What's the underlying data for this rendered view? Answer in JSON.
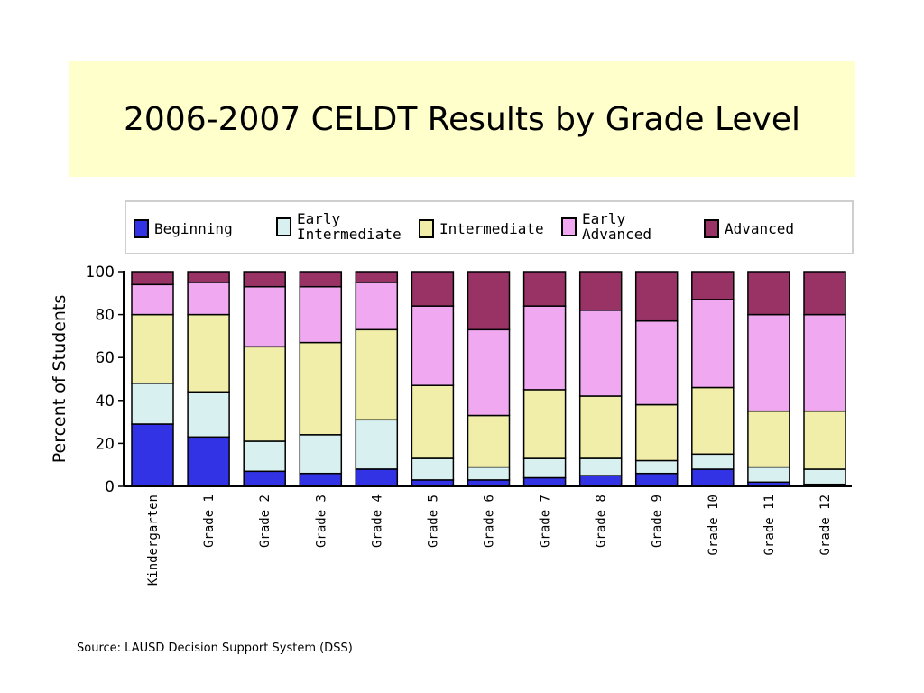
{
  "title": "2006-2007 CELDT Results by Grade Level",
  "source": "Source: LAUSD Decision Support System (DSS)",
  "colors": {
    "title_background": "#ffffcc",
    "Beginning": "#3333e6",
    "Early Intermediate": "#d8f0f0",
    "Intermediate": "#f0eea8",
    "Early Advanced": "#f0a8f0",
    "Advanced": "#993366"
  },
  "legend": [
    {
      "label": "Beginning",
      "color": "#3333e6"
    },
    {
      "label": "Early\nIntermediate",
      "color": "#d8f0f0"
    },
    {
      "label": "Intermediate",
      "color": "#f0eea8"
    },
    {
      "label": "Early\nAdvanced",
      "color": "#f0a8f0"
    },
    {
      "label": "Advanced",
      "color": "#993366"
    }
  ],
  "chart_data": {
    "type": "bar",
    "stacked": true,
    "ylabel": "Percent of Students",
    "ylim": [
      0,
      100
    ],
    "yticks": [
      0,
      20,
      40,
      60,
      80,
      100
    ],
    "grid": false,
    "legend_position": "top",
    "categories": [
      "Kindergarten",
      "Grade 1",
      "Grade 2",
      "Grade 3",
      "Grade 4",
      "Grade 5",
      "Grade 6",
      "Grade 7",
      "Grade 8",
      "Grade 9",
      "Grade 10",
      "Grade 11",
      "Grade 12"
    ],
    "series": [
      {
        "name": "Beginning",
        "values": [
          29,
          23,
          7,
          6,
          8,
          3,
          3,
          4,
          5,
          6,
          8,
          2,
          1
        ]
      },
      {
        "name": "Early Intermediate",
        "values": [
          19,
          21,
          14,
          18,
          23,
          10,
          6,
          9,
          8,
          6,
          7,
          7,
          7
        ]
      },
      {
        "name": "Intermediate",
        "values": [
          32,
          36,
          44,
          43,
          42,
          34,
          24,
          32,
          29,
          26,
          31,
          26,
          27
        ]
      },
      {
        "name": "Early Advanced",
        "values": [
          14,
          15,
          28,
          26,
          22,
          37,
          40,
          39,
          40,
          39,
          41,
          45,
          45
        ]
      },
      {
        "name": "Advanced",
        "values": [
          6,
          5,
          7,
          7,
          5,
          16,
          27,
          16,
          18,
          23,
          13,
          20,
          20
        ]
      }
    ]
  }
}
